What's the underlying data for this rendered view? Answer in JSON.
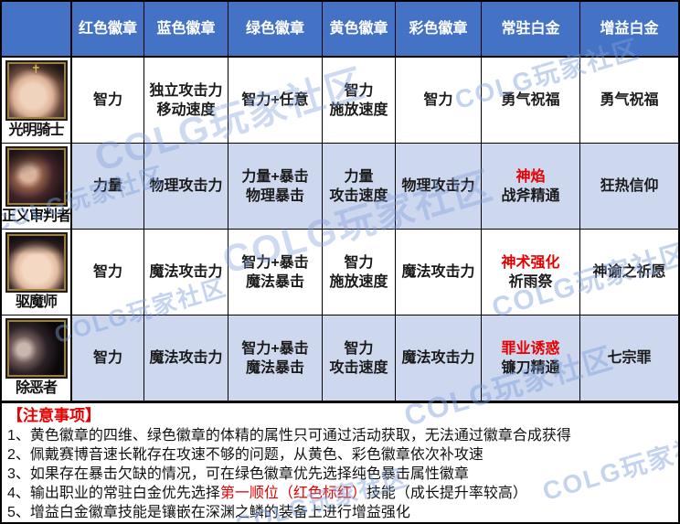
{
  "colors": {
    "header_bg": "#4472c4",
    "stripe_bg": "#cdd7ee",
    "red": "#e60000",
    "border": "#000000"
  },
  "watermark": {
    "text": "COLG玩家社区"
  },
  "icons": {
    "portrait_cross": "✝"
  },
  "grid": {
    "corner_label": "",
    "headers": [
      "红色徽章",
      "蓝色徽章",
      "绿色徽章",
      "黄色徽章",
      "彩色徽章",
      "常驻白金",
      "增益白金"
    ],
    "rows": [
      {
        "name": "光明骑士",
        "c1": {
          "l1": "智力",
          "l2": ""
        },
        "c2": {
          "l1": "独立攻击力",
          "l2": "移动速度"
        },
        "c3": {
          "l1": "智力+任意",
          "l2": ""
        },
        "c4": {
          "l1": "智力",
          "l2": "施放速度"
        },
        "c5": {
          "l1": "智力",
          "l2": ""
        },
        "c6": {
          "l1": "勇气祝福",
          "l1_red": false,
          "l2": ""
        },
        "c7": {
          "l1": "勇气祝福",
          "l2": ""
        }
      },
      {
        "name": "正义审判者",
        "c1": {
          "l1": "力量",
          "l2": ""
        },
        "c2": {
          "l1": "物理攻击力",
          "l2": ""
        },
        "c3": {
          "l1": "力量+暴击",
          "l2": "物理暴击"
        },
        "c4": {
          "l1": "力量",
          "l2": "攻击速度"
        },
        "c5": {
          "l1": "物理攻击力",
          "l2": ""
        },
        "c6": {
          "l1": "神焰",
          "l1_red": true,
          "l2": "战斧精通"
        },
        "c7": {
          "l1": "狂热信仰",
          "l2": ""
        }
      },
      {
        "name": "驱魔师",
        "c1": {
          "l1": "智力",
          "l2": ""
        },
        "c2": {
          "l1": "魔法攻击力",
          "l2": ""
        },
        "c3": {
          "l1": "智力+暴击",
          "l2": "魔法暴击"
        },
        "c4": {
          "l1": "智力",
          "l2": "施放速度"
        },
        "c5": {
          "l1": "魔法攻击力",
          "l2": ""
        },
        "c6": {
          "l1": "神术强化",
          "l1_red": true,
          "l2": "祈雨祭"
        },
        "c7": {
          "l1": "神谕之祈愿",
          "l2": ""
        }
      },
      {
        "name": "除恶者",
        "c1": {
          "l1": "智力",
          "l2": ""
        },
        "c2": {
          "l1": "魔法攻击力",
          "l2": ""
        },
        "c3": {
          "l1": "智力+暴击",
          "l2": "魔法暴击"
        },
        "c4": {
          "l1": "智力",
          "l2": "攻击速度"
        },
        "c5": {
          "l1": "魔法攻击力",
          "l2": ""
        },
        "c6": {
          "l1": "罪业诱惑",
          "l1_red": true,
          "l2": "镰刀精通"
        },
        "c7": {
          "l1": "七宗罪",
          "l2": ""
        }
      }
    ]
  },
  "notes": {
    "title": "【注意事项】",
    "items": [
      {
        "pre": "1、黄色徽章的四维、绿色徽章的体精的属性只可通过活动获取，无法通过徽章合成获得",
        "red": "",
        "post": ""
      },
      {
        "pre": "2、佩戴赛博音速长靴存在攻速不够的问题，从黄色、彩色徽章依次补攻速",
        "red": "",
        "post": ""
      },
      {
        "pre": "3、如果存在暴击欠缺的情况，可在绿色徽章优先选择纯色暴击属性徽章",
        "red": "",
        "post": ""
      },
      {
        "pre": "4、输出职业的常驻白金优先选择",
        "red": "第一顺位（红色标红）",
        "post": "技能（成长提升率较高）"
      },
      {
        "pre": "5、增益白金徽章技能是镶嵌在深渊之鳞的装备上进行增益强化",
        "red": "",
        "post": ""
      }
    ]
  }
}
